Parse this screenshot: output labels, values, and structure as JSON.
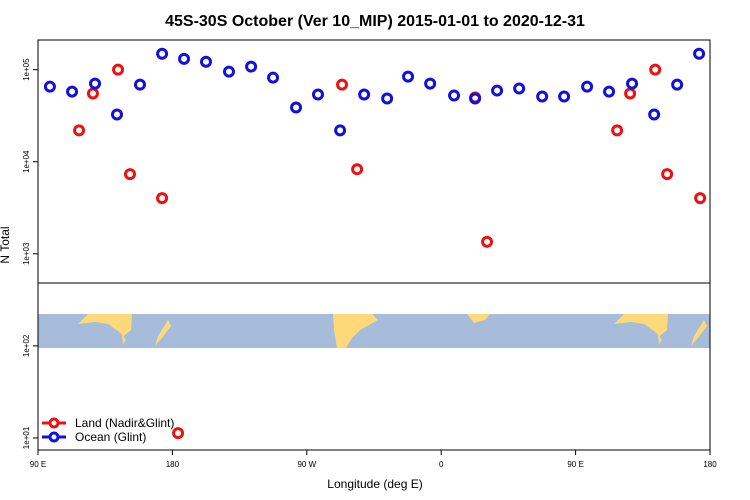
{
  "chart_data": {
    "type": "scatter",
    "title": "45S-30S October (Ver 10_MIP)   2015-01-01 to 2020-12-31",
    "x_label": "Longitude (deg E)",
    "y_label": "N Total",
    "log_y": true,
    "legend": "bottom-left",
    "xlim": [
      90,
      540
    ],
    "ylim": [
      7.4,
      210000
    ],
    "xticks": [
      {
        "value": 90,
        "label": "90 E"
      },
      {
        "value": 180,
        "label": "180"
      },
      {
        "value": 270,
        "label": "90 W"
      },
      {
        "value": 360,
        "label": "0"
      },
      {
        "value": 450,
        "label": "90 E"
      },
      {
        "value": 540,
        "label": "180"
      }
    ],
    "yticks": [
      {
        "value": 10,
        "label": "1e+01"
      },
      {
        "value": 100,
        "label": "1e+02"
      },
      {
        "value": 1000,
        "label": "1e+03"
      },
      {
        "value": 10000,
        "label": "1e+04"
      },
      {
        "value": 100000,
        "label": "1e+05"
      }
    ],
    "series": [
      {
        "name": "Land (Nadir&Glint)",
        "color": "#ee1111",
        "x": [
          117.5,
          126.8,
          143.6,
          151.6,
          173.1,
          183.8,
          293.6,
          303.7,
          382.7,
          390.7,
          477.8,
          486.5,
          503.3,
          511.3,
          533.4
        ],
        "values": [
          21900,
          55100,
          100000,
          7330,
          4030,
          11.3,
          68800,
          8300,
          49800,
          1350,
          21900,
          55100,
          100000,
          7330,
          4030
        ]
      },
      {
        "name": "Ocean (Glint)",
        "color": "#1111dd",
        "x": [
          98,
          112.8,
          128.2,
          142.9,
          158.3,
          173.1,
          187.8,
          202.5,
          217.9,
          232.7,
          247.4,
          262.8,
          277.5,
          292.3,
          308.4,
          323.8,
          337.8,
          352.6,
          368.6,
          382.7,
          397.4,
          412.2,
          427.6,
          442.3,
          457.7,
          472.4,
          487.8,
          502.6,
          518,
          532.7
        ],
        "values": [
          65500,
          57800,
          70600,
          32600,
          68800,
          149000,
          131000,
          122000,
          95100,
          108000,
          82000,
          38800,
          53700,
          21900,
          53700,
          48600,
          84000,
          70600,
          52400,
          48600,
          59300,
          62400,
          51100,
          51100,
          65500,
          57800,
          70600,
          32600,
          68800,
          149000
        ]
      }
    ]
  }
}
